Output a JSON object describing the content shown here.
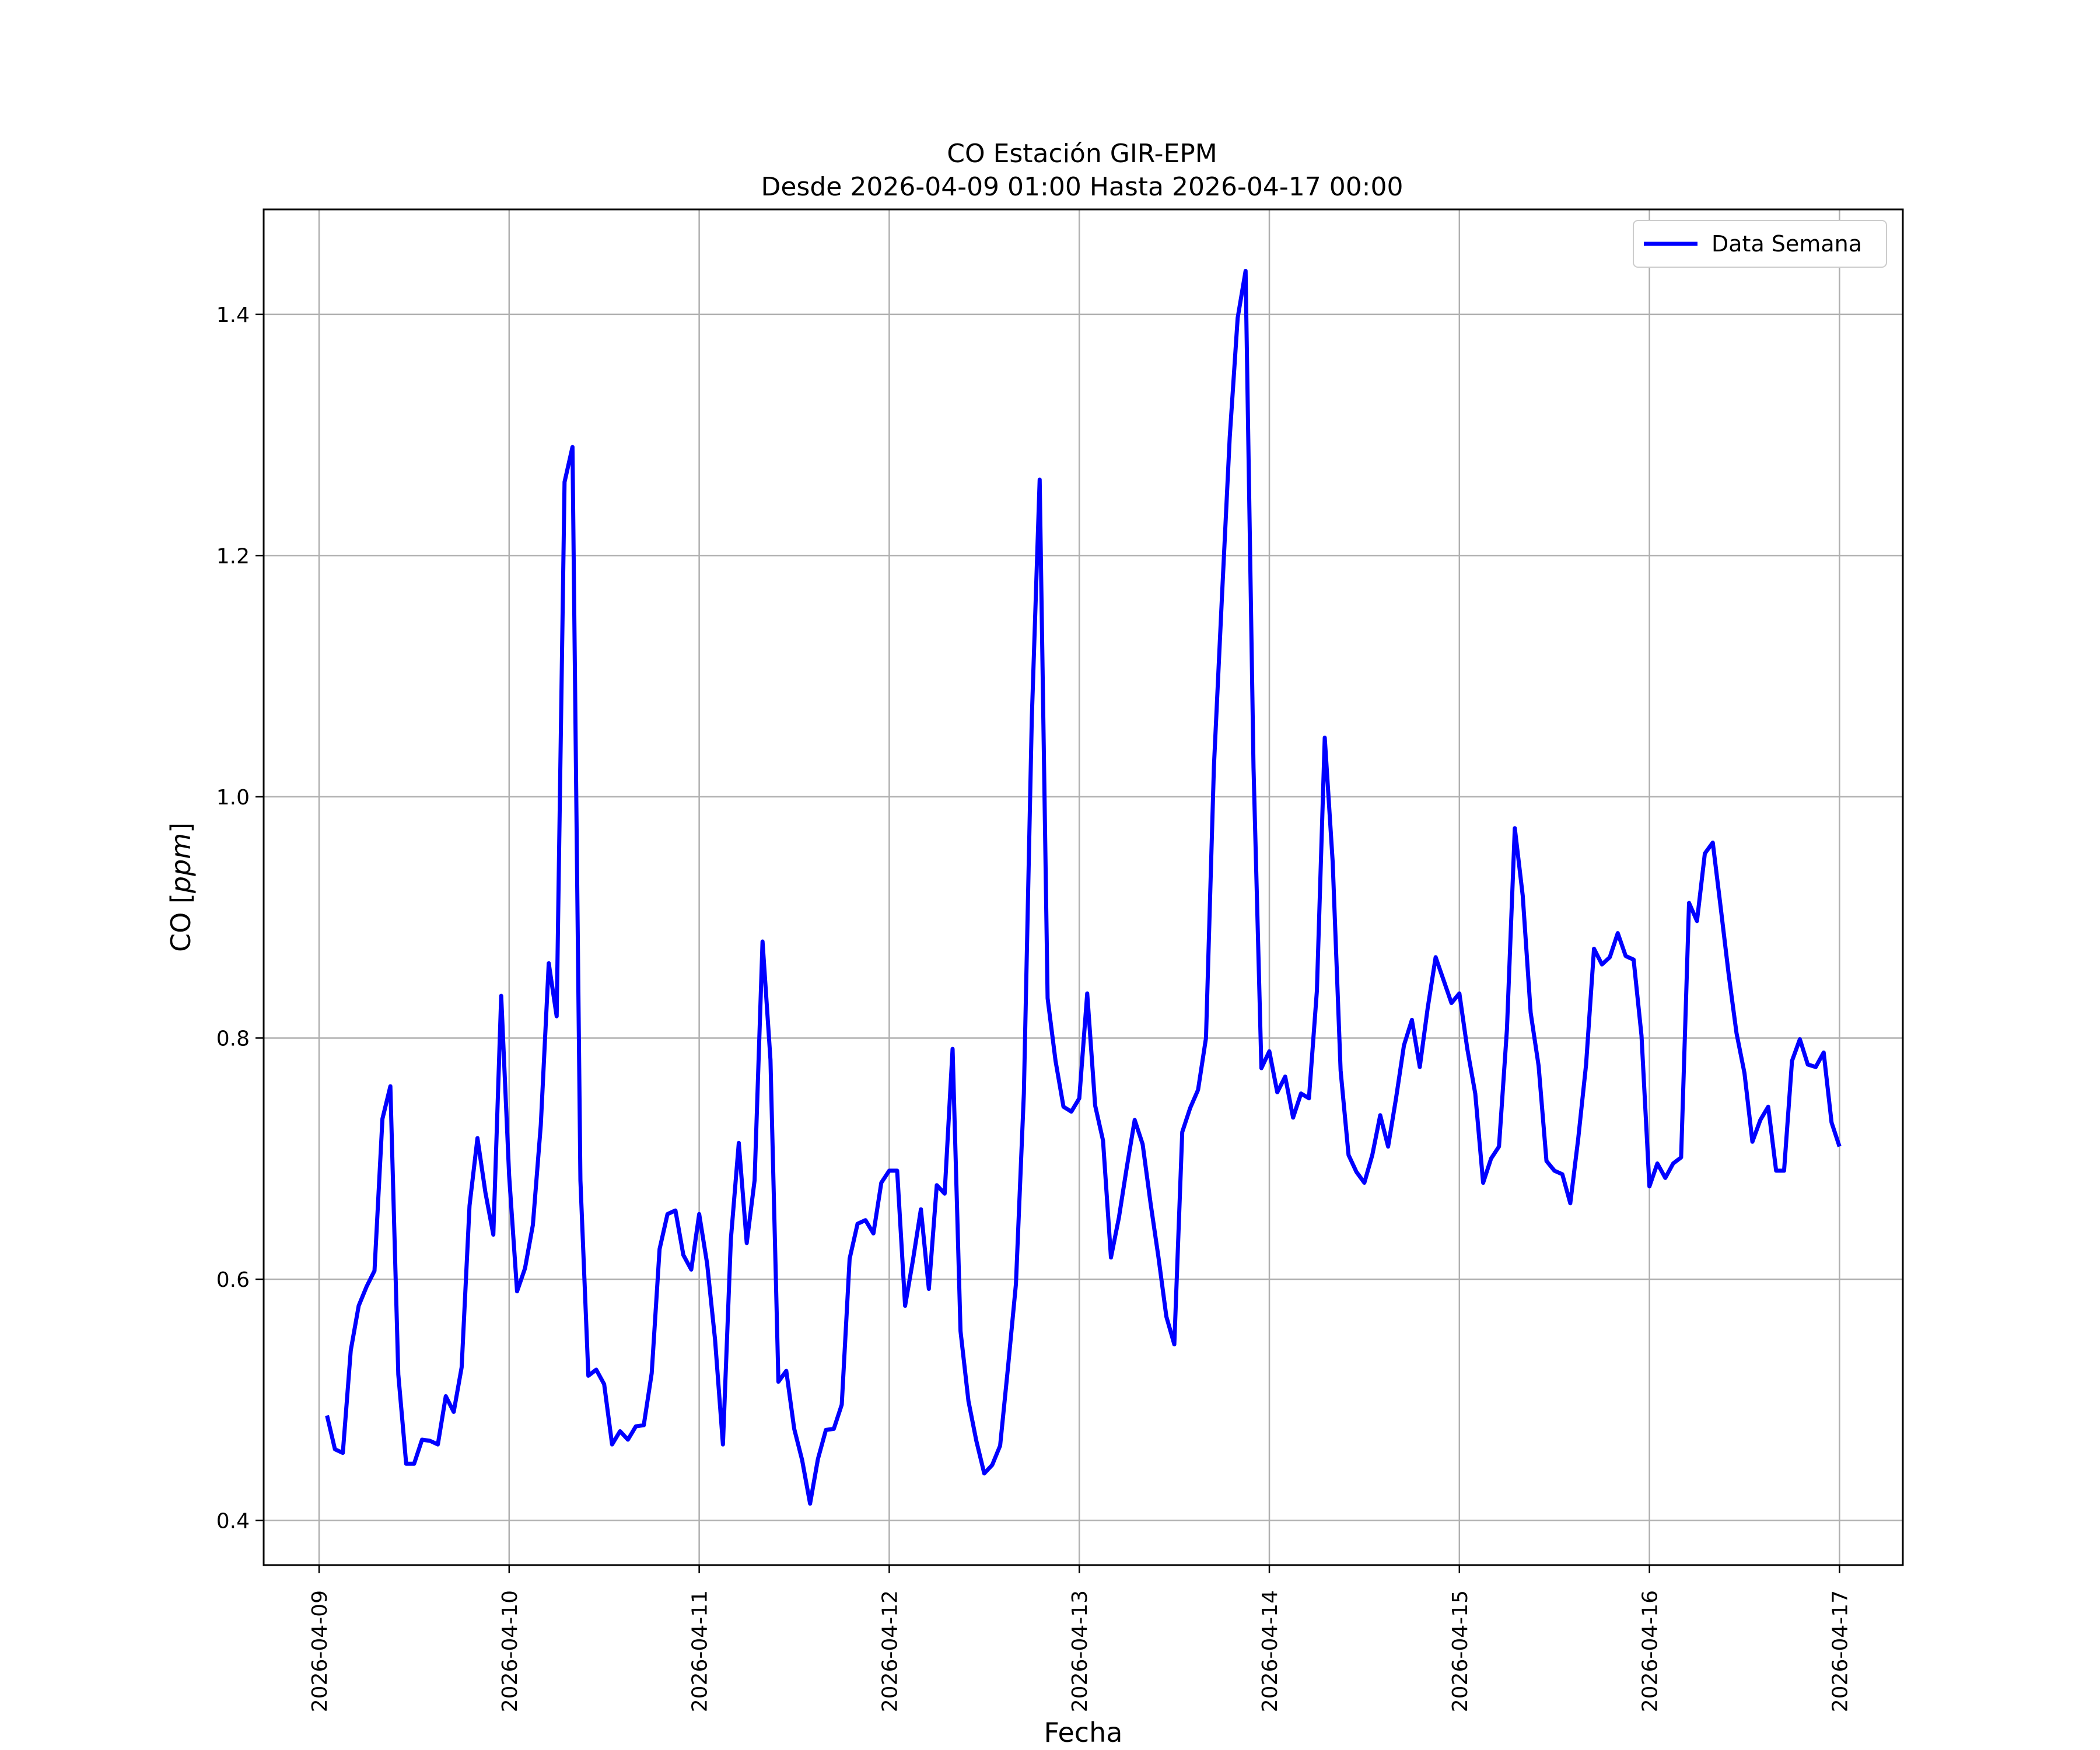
{
  "chart_data": {
    "type": "line",
    "title": "CO Estación GIR-EPM",
    "subtitle": "Desde 2026-04-09 01:00 Hasta 2026-04-17 00:00",
    "xlabel": "Fecha",
    "ylabel": "CO",
    "ylabel_unit": "ppm",
    "xlim": [
      "2026-04-08 17:00",
      "2026-04-17 08:00"
    ],
    "ylim": [
      0.363,
      1.487
    ],
    "x_ticks": [
      "2026-04-09",
      "2026-04-10",
      "2026-04-11",
      "2026-04-12",
      "2026-04-13",
      "2026-04-14",
      "2026-04-15",
      "2026-04-16",
      "2026-04-17"
    ],
    "y_ticks": [
      "0.4",
      "0.6",
      "0.8",
      "1.0",
      "1.2",
      "1.4"
    ],
    "grid": true,
    "legend": "top-right",
    "line_color": "#0000ff",
    "series": [
      {
        "name": "Data Semana",
        "x_start": "2026-04-09 01:00",
        "x_step": "1 hour",
        "x_end": "2026-04-17 00:00",
        "values": [
          0.487,
          0.459,
          0.456,
          0.541,
          0.578,
          0.594,
          0.607,
          0.733,
          0.76,
          0.521,
          0.447,
          0.447,
          0.467,
          0.466,
          0.463,
          0.503,
          0.49,
          0.527,
          0.661,
          0.717,
          0.672,
          0.637,
          0.835,
          0.686,
          0.59,
          0.609,
          0.645,
          0.728,
          0.862,
          0.818,
          1.261,
          1.29,
          0.682,
          0.52,
          0.525,
          0.513,
          0.463,
          0.474,
          0.467,
          0.478,
          0.479,
          0.522,
          0.625,
          0.654,
          0.657,
          0.62,
          0.608,
          0.654,
          0.613,
          0.55,
          0.463,
          0.633,
          0.713,
          0.63,
          0.682,
          0.88,
          0.782,
          0.515,
          0.524,
          0.476,
          0.45,
          0.414,
          0.451,
          0.475,
          0.476,
          0.496,
          0.617,
          0.646,
          0.649,
          0.638,
          0.68,
          0.69,
          0.69,
          0.578,
          0.616,
          0.658,
          0.592,
          0.678,
          0.671,
          0.791,
          0.557,
          0.499,
          0.466,
          0.439,
          0.446,
          0.462,
          0.527,
          0.596,
          0.754,
          1.065,
          1.263,
          0.833,
          0.781,
          0.743,
          0.739,
          0.75,
          0.837,
          0.744,
          0.715,
          0.618,
          0.651,
          0.693,
          0.732,
          0.712,
          0.663,
          0.618,
          0.569,
          0.546,
          0.722,
          0.742,
          0.757,
          0.8,
          1.025,
          1.164,
          1.298,
          1.397,
          1.436,
          1.024,
          0.775,
          0.789,
          0.755,
          0.768,
          0.734,
          0.754,
          0.75,
          0.839,
          1.049,
          0.946,
          0.773,
          0.703,
          0.689,
          0.68,
          0.703,
          0.736,
          0.71,
          0.75,
          0.794,
          0.815,
          0.776,
          0.825,
          0.867,
          0.848,
          0.829,
          0.837,
          0.791,
          0.754,
          0.68,
          0.7,
          0.71,
          0.807,
          0.974,
          0.918,
          0.821,
          0.777,
          0.698,
          0.69,
          0.687,
          0.663,
          0.716,
          0.778,
          0.874,
          0.861,
          0.867,
          0.887,
          0.868,
          0.865,
          0.802,
          0.677,
          0.696,
          0.684,
          0.696,
          0.701,
          0.912,
          0.897,
          0.953,
          0.962,
          0.908,
          0.853,
          0.804,
          0.771,
          0.714,
          0.732,
          0.743,
          0.69,
          0.69,
          0.781,
          0.799,
          0.778,
          0.776,
          0.788,
          0.73,
          0.71
        ]
      }
    ]
  }
}
